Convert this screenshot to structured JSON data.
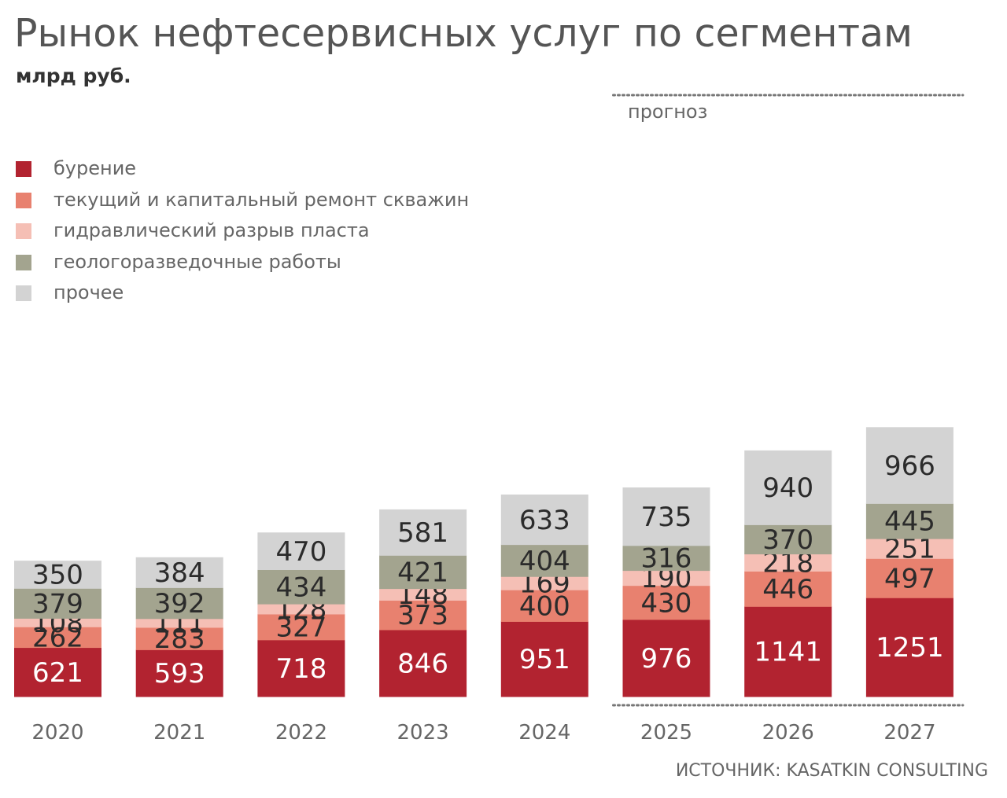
{
  "chart_data": {
    "type": "bar",
    "stacked": true,
    "title": "Рынок нефтесервисных услуг по сегментам",
    "subtitle": "млрд руб.",
    "forecast_label": "прогноз",
    "forecast_from": "2025",
    "categories": [
      "2020",
      "2021",
      "2022",
      "2023",
      "2024",
      "2025",
      "2026",
      "2027"
    ],
    "series": [
      {
        "name": "бурение",
        "color": "#B22330",
        "label_color": "#ffffff",
        "values": [
          621,
          593,
          718,
          846,
          951,
          976,
          1141,
          1251
        ]
      },
      {
        "name": "текущий и капитальный ремонт скважин",
        "color": "#E8816F",
        "label_color": "#2b2b2b",
        "values": [
          262,
          283,
          327,
          373,
          400,
          430,
          446,
          497
        ]
      },
      {
        "name": "гидравлический разрыв пласта",
        "color": "#F5BFB5",
        "label_color": "#2b2b2b",
        "values": [
          108,
          111,
          128,
          148,
          169,
          190,
          218,
          251
        ]
      },
      {
        "name": "геологоразведочные работы",
        "color": "#A3A48F",
        "label_color": "#2b2b2b",
        "values": [
          379,
          392,
          434,
          421,
          404,
          316,
          370,
          445
        ]
      },
      {
        "name": "прочее",
        "color": "#D3D3D3",
        "label_color": "#2b2b2b",
        "values": [
          350,
          384,
          470,
          581,
          633,
          735,
          940,
          966
        ]
      }
    ],
    "legend_position": "top-left",
    "grid": false,
    "source": "ИСТОЧНИК: KASATKIN CONSULTING"
  }
}
